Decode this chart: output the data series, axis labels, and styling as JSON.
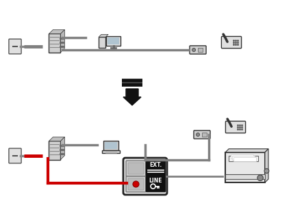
{
  "bg_color": "#ffffff",
  "arrow_color": "#000000",
  "red_cable": "#cc0000",
  "gray_cable": "#808080",
  "dark_gray": "#555555",
  "ext_label": "EXT.",
  "line_label": "LINE"
}
